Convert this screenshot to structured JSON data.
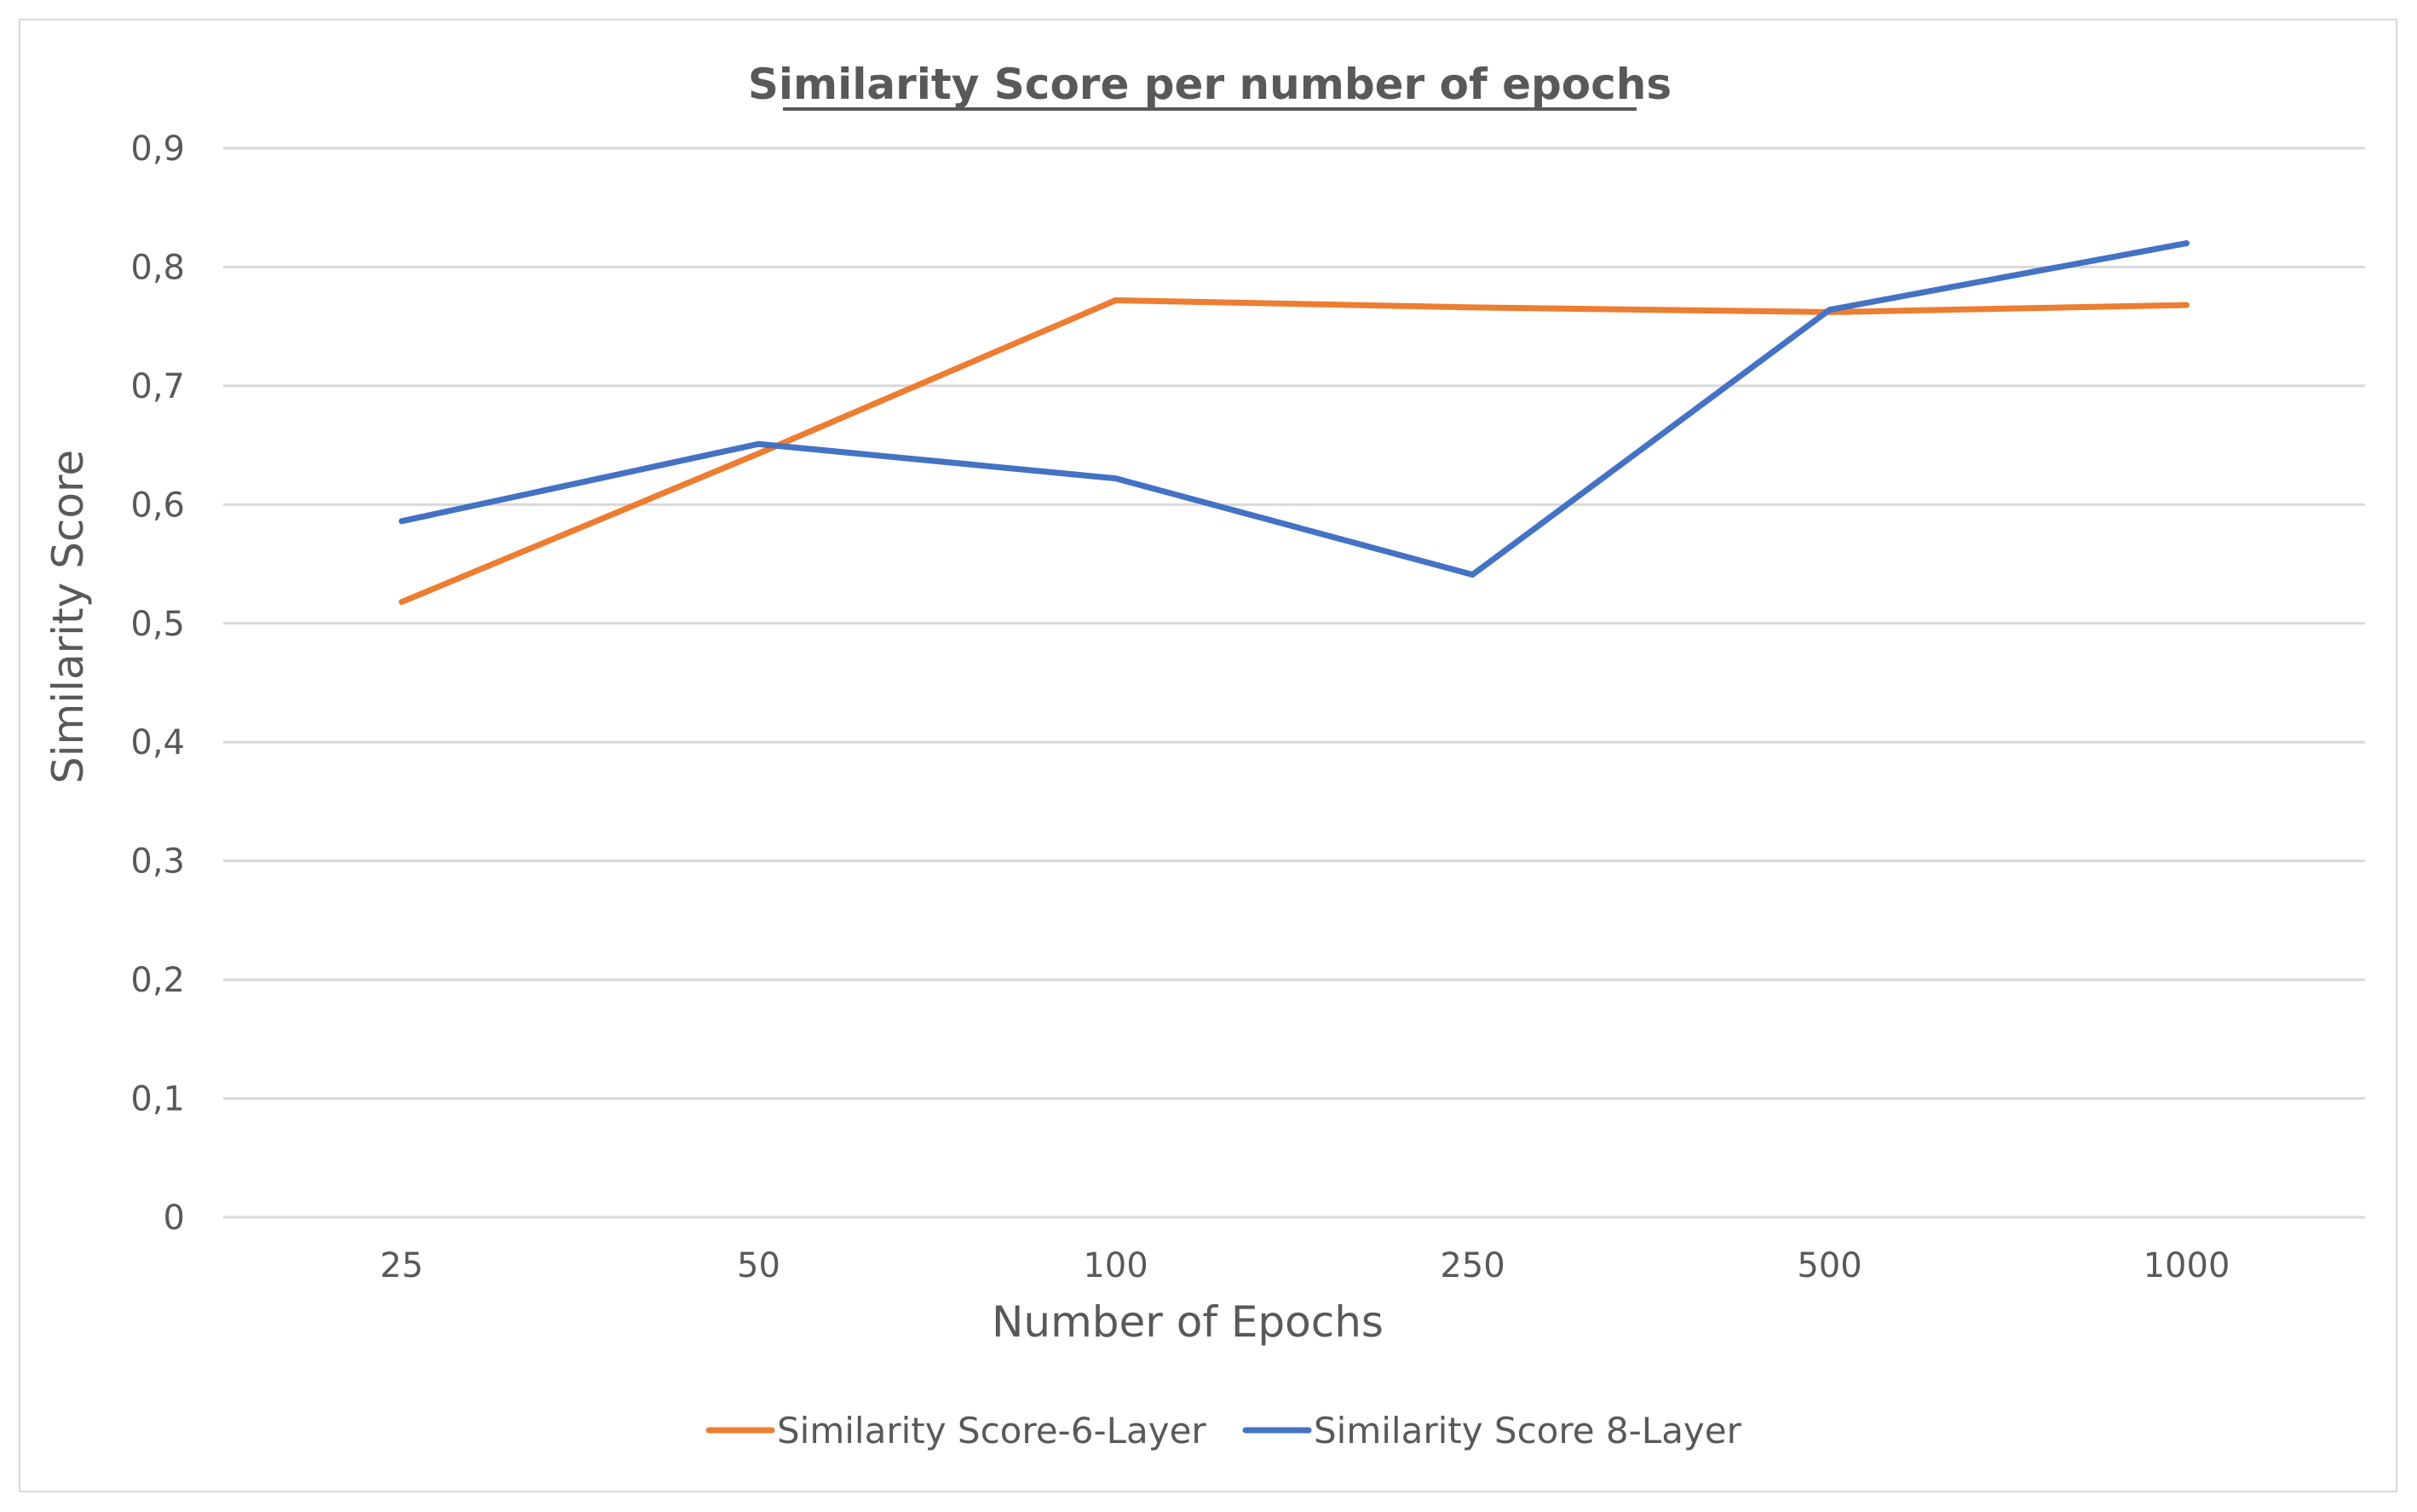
{
  "chart_data": {
    "type": "line",
    "title": "Similarity Score per number of epochs",
    "xlabel": "Number of Epochs",
    "ylabel": "Similarity Score",
    "categories": [
      "25",
      "50",
      "100",
      "250",
      "500",
      "1000"
    ],
    "ylim": [
      0,
      0.9
    ],
    "yticks": [
      0,
      0.1,
      0.2,
      0.3,
      0.4,
      0.5,
      0.6,
      0.7,
      0.8,
      0.9
    ],
    "ytick_labels": [
      "0",
      "0,1",
      "0,2",
      "0,3",
      "0,4",
      "0,5",
      "0,6",
      "0,7",
      "0,8",
      "0,9"
    ],
    "grid": true,
    "legend_position": "bottom",
    "series": [
      {
        "name": "Similarity Score-6-Layer",
        "color": "#ED7D31",
        "values": [
          0.518,
          0.643,
          0.772,
          0.766,
          0.762,
          0.768
        ]
      },
      {
        "name": "Similarity Score 8-Layer",
        "color": "#4472C4",
        "values": [
          0.586,
          0.651,
          0.622,
          0.541,
          0.764,
          0.82
        ]
      }
    ]
  }
}
